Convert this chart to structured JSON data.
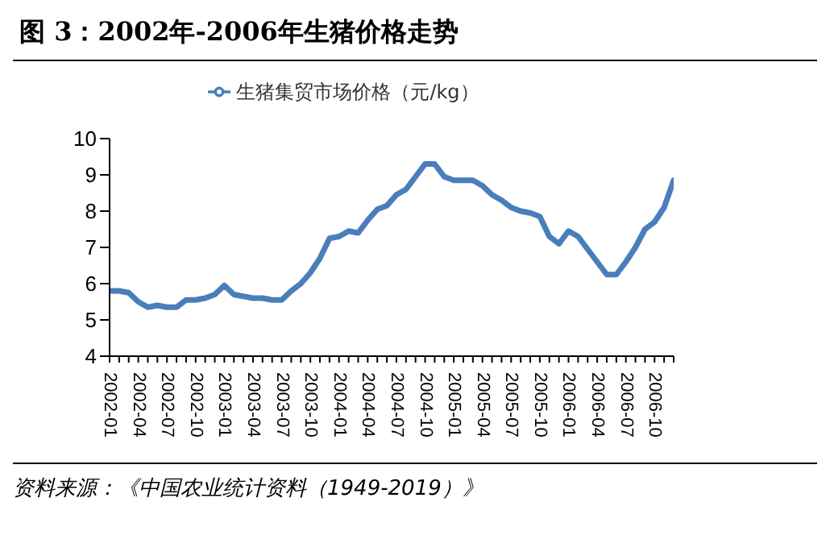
{
  "chart_data": {
    "type": "line",
    "title": "图 3：2002年-2006年生猪价格走势",
    "categories": [
      "2002-01",
      null,
      null,
      "2002-04",
      null,
      null,
      "2002-07",
      null,
      null,
      "2002-10",
      null,
      null,
      "2003-01",
      null,
      null,
      "2003-04",
      null,
      null,
      "2003-07",
      null,
      null,
      "2003-10",
      null,
      null,
      "2004-01",
      null,
      null,
      "2004-04",
      null,
      null,
      "2004-07",
      null,
      null,
      "2004-10",
      null,
      null,
      "2005-01",
      null,
      null,
      "2005-04",
      null,
      null,
      "2005-07",
      null,
      null,
      "2005-10",
      null,
      null,
      "2006-01",
      null,
      null,
      "2006-04",
      null,
      null,
      "2006-07",
      null,
      null,
      "2006-10",
      null,
      null
    ],
    "series": [
      {
        "name": "生猪集贸市场价格（元/kg）",
        "color": "#4a7ebb",
        "values": [
          5.8,
          5.8,
          5.75,
          5.5,
          5.35,
          5.4,
          5.35,
          5.35,
          5.55,
          5.55,
          5.6,
          5.7,
          5.95,
          5.7,
          5.65,
          5.6,
          5.6,
          5.55,
          5.55,
          5.8,
          6.0,
          6.3,
          6.7,
          7.25,
          7.3,
          7.45,
          7.4,
          7.75,
          8.05,
          8.15,
          8.45,
          8.6,
          8.95,
          9.3,
          9.3,
          8.95,
          8.85,
          8.85,
          8.85,
          8.7,
          8.45,
          8.3,
          8.1,
          8.0,
          7.95,
          7.85,
          7.3,
          7.1,
          7.45,
          7.3,
          6.95,
          6.6,
          6.25,
          6.25,
          6.6,
          7.0,
          7.5,
          7.7,
          8.1,
          8.85
        ]
      }
    ],
    "ylim": [
      4,
      10
    ],
    "yticks": [
      4,
      5,
      6,
      7,
      8,
      9,
      10
    ],
    "grid": false,
    "legend": "top",
    "marker": "none",
    "line_style": "solid",
    "annotations": [
      "资料来源：《中国农业统计资料（1949-2019）》"
    ]
  }
}
